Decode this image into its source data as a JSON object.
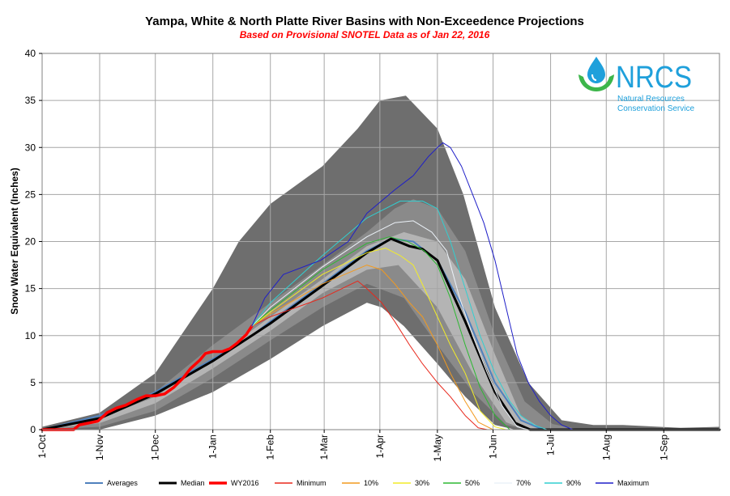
{
  "chart_data": {
    "type": "line",
    "title": "Yampa, White & North Platte River Basins with Non-Exceedence Projections",
    "subtitle": "Based on Provisional SNOTEL Data as of Jan 22, 2016",
    "xlabel": "",
    "ylabel": "Snow Water Equivalent (Inches)",
    "ylim": [
      0,
      40
    ],
    "y_ticks": [
      "0",
      "5",
      "10",
      "15",
      "20",
      "25",
      "30",
      "35",
      "40"
    ],
    "x_ticks": [
      "1-Oct",
      "1-Nov",
      "1-Dec",
      "1-Jan",
      "1-Feb",
      "1-Mar",
      "1-Apr",
      "1-May",
      "1-Jun",
      "1-Jul",
      "1-Aug",
      "1-Sep"
    ],
    "grid": true,
    "legend_position": "bottom",
    "logo": {
      "name": "NRCS",
      "line1": "Natural Resources",
      "line2": "Conservation Service"
    },
    "bands": [
      {
        "name": "max-min range",
        "color": "#6e6e6e",
        "upper": [
          [
            0,
            0.3
          ],
          [
            31,
            1.8
          ],
          [
            61,
            6
          ],
          [
            92,
            15
          ],
          [
            106,
            20
          ],
          [
            123,
            24
          ],
          [
            151,
            28
          ],
          [
            170,
            32
          ],
          [
            182,
            35
          ],
          [
            196,
            35.5
          ],
          [
            213,
            32
          ],
          [
            227,
            25
          ],
          [
            244,
            13
          ],
          [
            262,
            5
          ],
          [
            280,
            1
          ],
          [
            297,
            0.5
          ],
          [
            313,
            0.5
          ],
          [
            344,
            0.2
          ],
          [
            365,
            0.3
          ]
        ],
        "lower": [
          [
            0,
            0
          ],
          [
            31,
            0
          ],
          [
            61,
            1.5
          ],
          [
            92,
            4
          ],
          [
            123,
            7.5
          ],
          [
            151,
            11
          ],
          [
            175,
            13.5
          ],
          [
            183,
            13
          ],
          [
            195,
            11
          ],
          [
            213,
            7
          ],
          [
            228,
            3.5
          ],
          [
            244,
            0.5
          ],
          [
            255,
            0
          ],
          [
            365,
            0
          ]
        ]
      },
      {
        "name": "90% band",
        "color": "#8a8a8a",
        "upper": [
          [
            0,
            0.1
          ],
          [
            31,
            1.5
          ],
          [
            61,
            4
          ],
          [
            92,
            9
          ],
          [
            123,
            13.5
          ],
          [
            151,
            17.5
          ],
          [
            175,
            21
          ],
          [
            190,
            23.5
          ],
          [
            200,
            24.5
          ],
          [
            213,
            23.5
          ],
          [
            228,
            19
          ],
          [
            244,
            10
          ],
          [
            260,
            3
          ],
          [
            275,
            0.6
          ],
          [
            290,
            0
          ],
          [
            365,
            0
          ]
        ],
        "lower": [
          [
            0,
            0
          ],
          [
            31,
            0.3
          ],
          [
            61,
            2
          ],
          [
            92,
            5.5
          ],
          [
            123,
            9.5
          ],
          [
            151,
            13
          ],
          [
            175,
            15.5
          ],
          [
            195,
            14
          ],
          [
            213,
            9
          ],
          [
            232,
            4
          ],
          [
            250,
            0.5
          ],
          [
            262,
            0
          ],
          [
            365,
            0
          ]
        ]
      },
      {
        "name": "70% band",
        "color": "#b4b4b4",
        "upper": [
          [
            0,
            0
          ],
          [
            31,
            1.2
          ],
          [
            61,
            3.5
          ],
          [
            92,
            7.5
          ],
          [
            123,
            12
          ],
          [
            151,
            16
          ],
          [
            175,
            19.5
          ],
          [
            195,
            21
          ],
          [
            213,
            20
          ],
          [
            228,
            16
          ],
          [
            244,
            8
          ],
          [
            258,
            1.5
          ],
          [
            270,
            0
          ],
          [
            365,
            0
          ]
        ],
        "lower": [
          [
            0,
            0
          ],
          [
            31,
            0.7
          ],
          [
            61,
            2.8
          ],
          [
            92,
            6.5
          ],
          [
            123,
            10.5
          ],
          [
            151,
            14.5
          ],
          [
            175,
            17
          ],
          [
            192,
            17.5
          ],
          [
            213,
            13
          ],
          [
            232,
            6
          ],
          [
            250,
            0.8
          ],
          [
            260,
            0
          ],
          [
            365,
            0
          ]
        ]
      }
    ],
    "series": [
      {
        "name": "Averages",
        "color": "#4f81bd",
        "width": 2,
        "points": [
          [
            0,
            0
          ],
          [
            31,
            1.5
          ],
          [
            61,
            4
          ],
          [
            92,
            7.5
          ],
          [
            113,
            10
          ],
          [
            123,
            11.5
          ],
          [
            151,
            15.5
          ],
          [
            175,
            19
          ],
          [
            188,
            20.3
          ],
          [
            200,
            20
          ],
          [
            213,
            18
          ],
          [
            228,
            12.5
          ],
          [
            244,
            5
          ],
          [
            258,
            1
          ],
          [
            270,
            0
          ],
          [
            365,
            0
          ]
        ]
      },
      {
        "name": "Median",
        "color": "#000000",
        "width": 3,
        "points": [
          [
            0,
            0
          ],
          [
            31,
            1.2
          ],
          [
            61,
            3.8
          ],
          [
            92,
            7.3
          ],
          [
            113,
            10
          ],
          [
            123,
            11.3
          ],
          [
            151,
            15.3
          ],
          [
            175,
            18.8
          ],
          [
            188,
            20.3
          ],
          [
            198,
            19.5
          ],
          [
            205,
            19.2
          ],
          [
            213,
            18
          ],
          [
            228,
            11.5
          ],
          [
            244,
            4
          ],
          [
            255,
            0.7
          ],
          [
            263,
            0
          ],
          [
            365,
            0
          ]
        ]
      },
      {
        "name": "WY2016",
        "color": "#ff0000",
        "width": 3.5,
        "points": [
          [
            0,
            0
          ],
          [
            17,
            0
          ],
          [
            20,
            0.5
          ],
          [
            25,
            0.7
          ],
          [
            30,
            0.9
          ],
          [
            35,
            1.8
          ],
          [
            40,
            2.3
          ],
          [
            45,
            2.6
          ],
          [
            51,
            3.2
          ],
          [
            56,
            3.6
          ],
          [
            61,
            3.6
          ],
          [
            66,
            3.8
          ],
          [
            71,
            4.5
          ],
          [
            76,
            5.5
          ],
          [
            80,
            6.5
          ],
          [
            85,
            7.4
          ],
          [
            88,
            8.1
          ],
          [
            92,
            8.3
          ],
          [
            97,
            8.3
          ],
          [
            101,
            8.6
          ],
          [
            105,
            9.2
          ],
          [
            110,
            10.1
          ],
          [
            113,
            11
          ]
        ]
      },
      {
        "name": "Minimum",
        "color": "#e8281c",
        "width": 1,
        "points": [
          [
            113,
            11
          ],
          [
            123,
            12
          ],
          [
            151,
            14
          ],
          [
            170,
            15.8
          ],
          [
            175,
            15
          ],
          [
            183,
            13.5
          ],
          [
            190,
            11.5
          ],
          [
            198,
            9
          ],
          [
            205,
            7
          ],
          [
            213,
            5
          ],
          [
            220,
            3.5
          ],
          [
            228,
            1.5
          ],
          [
            235,
            0.2
          ],
          [
            240,
            0
          ],
          [
            365,
            0
          ]
        ]
      },
      {
        "name": "10%",
        "color": "#f29a1f",
        "width": 1,
        "points": [
          [
            113,
            11
          ],
          [
            123,
            12.3
          ],
          [
            151,
            15.5
          ],
          [
            175,
            17.5
          ],
          [
            183,
            17
          ],
          [
            190,
            15.5
          ],
          [
            198,
            13.5
          ],
          [
            205,
            12
          ],
          [
            213,
            9
          ],
          [
            220,
            6
          ],
          [
            228,
            3
          ],
          [
            235,
            0.8
          ],
          [
            243,
            0
          ],
          [
            365,
            0
          ]
        ]
      },
      {
        "name": "30%",
        "color": "#f2ec29",
        "width": 1,
        "points": [
          [
            113,
            11
          ],
          [
            123,
            12.5
          ],
          [
            151,
            16.5
          ],
          [
            175,
            18.8
          ],
          [
            185,
            19.3
          ],
          [
            193,
            18.5
          ],
          [
            200,
            17.5
          ],
          [
            206,
            15
          ],
          [
            213,
            12
          ],
          [
            220,
            9
          ],
          [
            228,
            6
          ],
          [
            236,
            2
          ],
          [
            244,
            0.3
          ],
          [
            250,
            0
          ],
          [
            365,
            0
          ]
        ]
      },
      {
        "name": "50%",
        "color": "#2db832",
        "width": 1,
        "points": [
          [
            113,
            11
          ],
          [
            123,
            12.7
          ],
          [
            151,
            17
          ],
          [
            175,
            19.8
          ],
          [
            187,
            20.5
          ],
          [
            197,
            20
          ],
          [
            206,
            19
          ],
          [
            213,
            17.5
          ],
          [
            220,
            14
          ],
          [
            228,
            9
          ],
          [
            236,
            4.5
          ],
          [
            244,
            1.5
          ],
          [
            252,
            0
          ],
          [
            365,
            0
          ]
        ]
      },
      {
        "name": "70%",
        "color": "#ecf2f8",
        "width": 1,
        "points": [
          [
            113,
            11
          ],
          [
            123,
            13
          ],
          [
            151,
            17.3
          ],
          [
            175,
            20.5
          ],
          [
            190,
            22
          ],
          [
            200,
            22.2
          ],
          [
            210,
            21
          ],
          [
            218,
            19
          ],
          [
            225,
            14
          ],
          [
            232,
            10
          ],
          [
            240,
            6
          ],
          [
            248,
            2.5
          ],
          [
            256,
            0.3
          ],
          [
            262,
            0
          ],
          [
            365,
            0
          ]
        ]
      },
      {
        "name": "90%",
        "color": "#31cfd1",
        "width": 1,
        "points": [
          [
            113,
            11
          ],
          [
            123,
            13.5
          ],
          [
            151,
            18.5
          ],
          [
            175,
            22.5
          ],
          [
            185,
            23.5
          ],
          [
            193,
            24.3
          ],
          [
            205,
            24.3
          ],
          [
            213,
            23.5
          ],
          [
            220,
            20
          ],
          [
            228,
            15
          ],
          [
            236,
            10
          ],
          [
            244,
            6
          ],
          [
            252,
            3
          ],
          [
            258,
            1.5
          ],
          [
            265,
            0.5
          ],
          [
            272,
            0
          ],
          [
            365,
            0
          ]
        ]
      },
      {
        "name": "Maximum",
        "color": "#1f1fc8",
        "width": 1,
        "points": [
          [
            113,
            11
          ],
          [
            120,
            14
          ],
          [
            130,
            16.5
          ],
          [
            150,
            18
          ],
          [
            165,
            20
          ],
          [
            175,
            23
          ],
          [
            190,
            25.5
          ],
          [
            200,
            27
          ],
          [
            208,
            29
          ],
          [
            213,
            30
          ],
          [
            216,
            30.5
          ],
          [
            220,
            30
          ],
          [
            226,
            28
          ],
          [
            232,
            25
          ],
          [
            238,
            22
          ],
          [
            244,
            18
          ],
          [
            250,
            13
          ],
          [
            256,
            8
          ],
          [
            262,
            5
          ],
          [
            268,
            3
          ],
          [
            274,
            1.5
          ],
          [
            280,
            0.5
          ],
          [
            286,
            0
          ],
          [
            365,
            0
          ]
        ]
      }
    ]
  }
}
